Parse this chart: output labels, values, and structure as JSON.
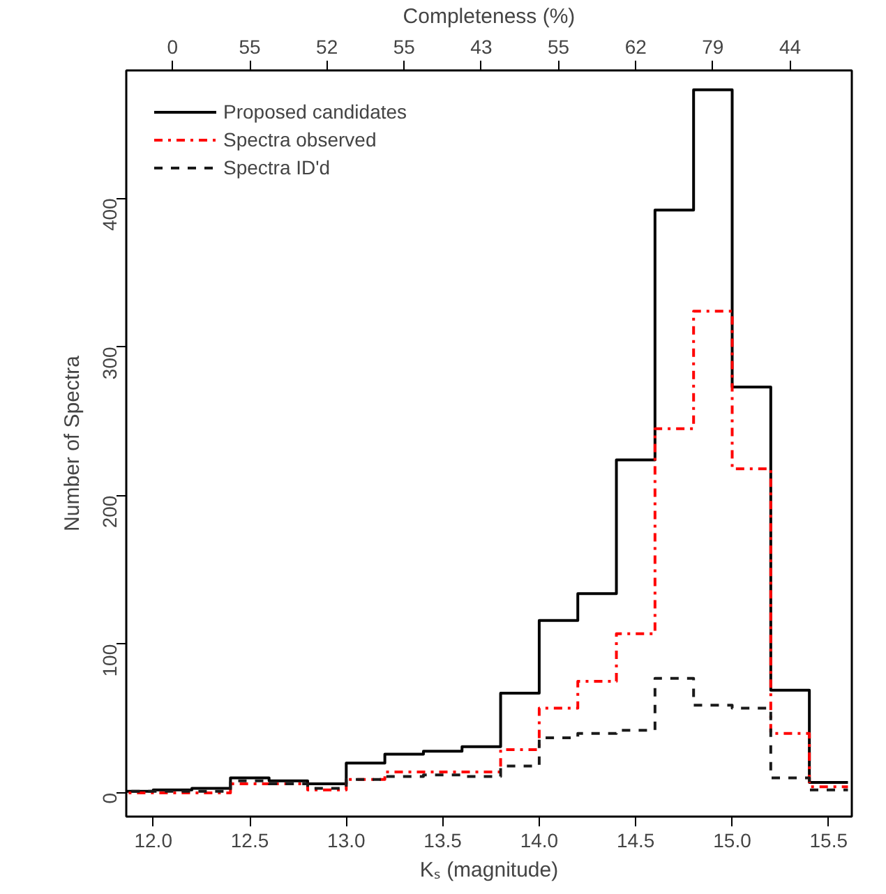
{
  "chart_data": {
    "type": "histogram",
    "xlabel": "Kₛ (magnitude)",
    "ylabel": "Number of Spectra",
    "x2label": "Completeness (%)",
    "bins": [
      11.8,
      12.0,
      12.2,
      12.4,
      12.6,
      12.8,
      13.0,
      13.2,
      13.4,
      13.6,
      13.8,
      14.0,
      14.2,
      14.4,
      14.6,
      14.8,
      15.0,
      15.2,
      15.4,
      15.6
    ],
    "series": [
      {
        "name": "Proposed candidates",
        "color": "#000000",
        "line_style": "solid",
        "values": [
          1,
          2,
          3,
          10,
          8,
          6,
          20,
          26,
          28,
          31,
          67,
          116,
          134,
          224,
          392,
          473,
          273,
          69,
          7
        ]
      },
      {
        "name": "Spectra observed",
        "color": "#ff0000",
        "line_style": "dashdot",
        "values": [
          0,
          0,
          0,
          6,
          6,
          2,
          9,
          14,
          14,
          14,
          29,
          57,
          75,
          107,
          245,
          324,
          218,
          40,
          4
        ]
      },
      {
        "name": "Spectra ID'd",
        "color": "#1a1a1a",
        "line_style": "dashed",
        "values": [
          1,
          1,
          1,
          8,
          6,
          3,
          9,
          11,
          12,
          11,
          18,
          37,
          40,
          42,
          77,
          59,
          57,
          10,
          2
        ]
      }
    ],
    "xlim": [
      11.86,
      15.62
    ],
    "ylim": [
      -16,
      486
    ],
    "xticks": [
      {
        "value": 12.0,
        "label": "12.0"
      },
      {
        "value": 12.5,
        "label": "12.5"
      },
      {
        "value": 13.0,
        "label": "13.0"
      },
      {
        "value": 13.5,
        "label": "13.5"
      },
      {
        "value": 14.0,
        "label": "14.0"
      },
      {
        "value": 14.5,
        "label": "14.5"
      },
      {
        "value": 15.0,
        "label": "15.0"
      },
      {
        "value": 15.5,
        "label": "15.5"
      }
    ],
    "yticks": [
      0,
      100,
      200,
      300,
      400
    ],
    "annotations": [
      "0",
      "55",
      "52",
      "55",
      "43",
      "55",
      "62",
      "79",
      "44"
    ],
    "grid": false,
    "legend": "top left"
  }
}
